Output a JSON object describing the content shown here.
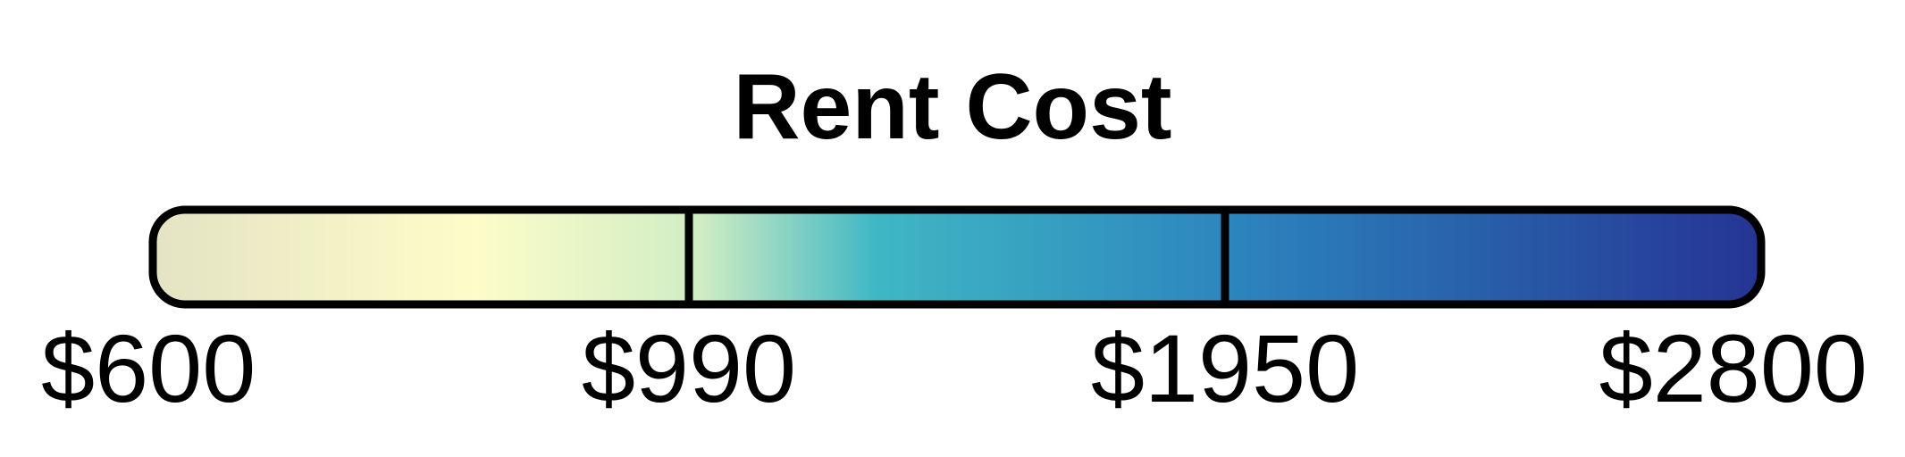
{
  "chart_data": {
    "type": "colorbar",
    "title": "Rent Cost",
    "ticks": [
      {
        "value": 600,
        "label": "$600"
      },
      {
        "value": 990,
        "label": "$990"
      },
      {
        "value": 1950,
        "label": "$1950"
      },
      {
        "value": 2800,
        "label": "$2800"
      }
    ],
    "range": [
      600,
      2800
    ],
    "tick_positions": "equally spaced (quantile breaks)",
    "colormap": [
      "#e4e3c4",
      "#fdfdc9",
      "#d0edc4",
      "#3fb7c4",
      "#2c83bd",
      "#253494"
    ]
  }
}
